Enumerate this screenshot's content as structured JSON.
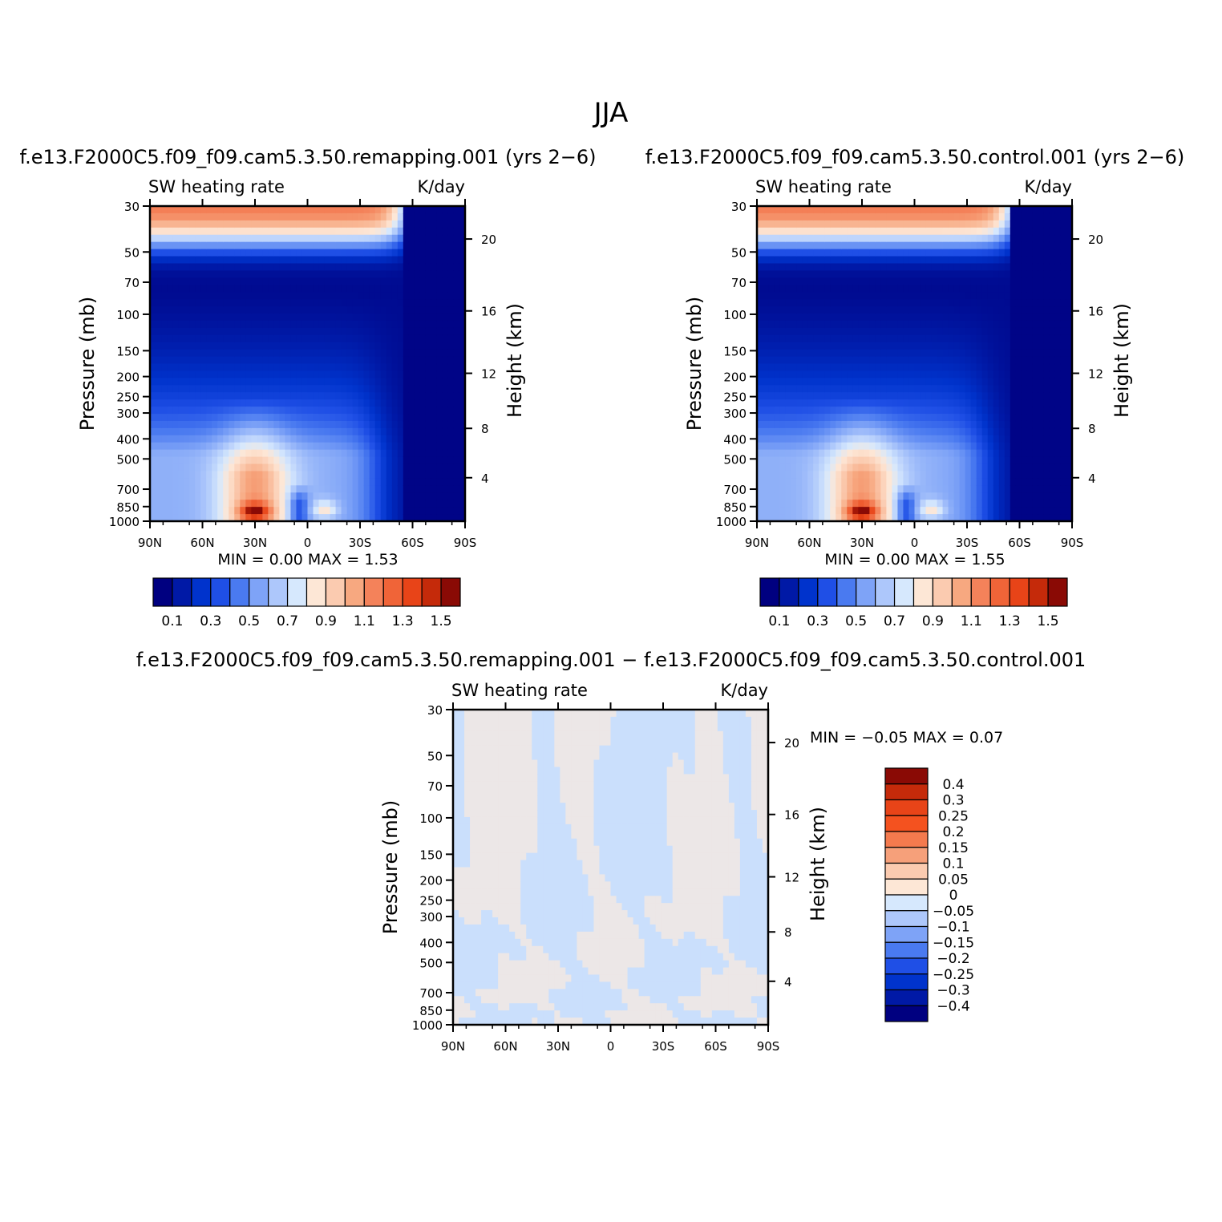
{
  "figure": {
    "title": "JJA"
  },
  "chart_data": [
    {
      "type": "heatmap",
      "case_title": "f.e13.F2000C5.f09_f09.cam5.3.50.remapping.001  (yrs 2−6)",
      "variable": "SW heating rate",
      "units": "K/day",
      "xlabel": "",
      "ylabel": "Pressure (mb)",
      "y2label": "Height (km)",
      "x_ticks": [
        "90N",
        "60N",
        "30N",
        "0",
        "30S",
        "60S",
        "90S"
      ],
      "y_ticks": [
        30,
        50,
        70,
        100,
        150,
        200,
        250,
        300,
        400,
        500,
        700,
        850,
        1000
      ],
      "y2_ticks": [
        20,
        16,
        12,
        8,
        4
      ],
      "ylim": [
        1000,
        30
      ],
      "stats": {
        "min_label": "MIN =",
        "min": "0.00",
        "max_label": "MAX =",
        "max": "1.53"
      },
      "colorbar_levels": [
        "0.1",
        "0.3",
        "0.5",
        "0.7",
        "0.9",
        "1.1",
        "1.3",
        "1.5"
      ],
      "colorbar_colors": [
        "#000080",
        "#0019a6",
        "#0033cc",
        "#1f4fe6",
        "#4a7af0",
        "#7ea3f7",
        "#adc7fb",
        "#d6e8fd",
        "#fde7d6",
        "#fbcbb0",
        "#f7a880",
        "#f4825a",
        "#f06438",
        "#e84418",
        "#c52a0a",
        "#8a0a05"
      ]
    },
    {
      "type": "heatmap",
      "case_title": "f.e13.F2000C5.f09_f09.cam5.3.50.control.001  (yrs 2−6)",
      "variable": "SW heating rate",
      "units": "K/day",
      "xlabel": "",
      "ylabel": "Pressure (mb)",
      "y2label": "Height (km)",
      "x_ticks": [
        "90N",
        "60N",
        "30N",
        "0",
        "30S",
        "60S",
        "90S"
      ],
      "y_ticks": [
        30,
        50,
        70,
        100,
        150,
        200,
        250,
        300,
        400,
        500,
        700,
        850,
        1000
      ],
      "y2_ticks": [
        20,
        16,
        12,
        8,
        4
      ],
      "ylim": [
        1000,
        30
      ],
      "stats": {
        "min_label": "MIN =",
        "min": "0.00",
        "max_label": "MAX =",
        "max": "1.55"
      },
      "colorbar_levels": [
        "0.1",
        "0.3",
        "0.5",
        "0.7",
        "0.9",
        "1.1",
        "1.3",
        "1.5"
      ],
      "colorbar_colors": [
        "#000080",
        "#0019a6",
        "#0033cc",
        "#1f4fe6",
        "#4a7af0",
        "#7ea3f7",
        "#adc7fb",
        "#d6e8fd",
        "#fde7d6",
        "#fbcbb0",
        "#f7a880",
        "#f4825a",
        "#f06438",
        "#e84418",
        "#c52a0a",
        "#8a0a05"
      ]
    },
    {
      "type": "heatmap",
      "case_title": "f.e13.F2000C5.f09_f09.cam5.3.50.remapping.001 − f.e13.F2000C5.f09_f09.cam5.3.50.control.001",
      "variable": "SW heating rate",
      "units": "K/day",
      "xlabel": "",
      "ylabel": "Pressure (mb)",
      "y2label": "Height (km)",
      "x_ticks": [
        "90N",
        "60N",
        "30N",
        "0",
        "30S",
        "60S",
        "90S"
      ],
      "y_ticks": [
        30,
        50,
        70,
        100,
        150,
        200,
        250,
        300,
        400,
        500,
        700,
        850,
        1000
      ],
      "y2_ticks": [
        20,
        16,
        12,
        8,
        4
      ],
      "ylim": [
        1000,
        30
      ],
      "stats": {
        "min_label": "MIN =",
        "min": "−0.05",
        "max_label": "MAX =",
        "max": "0.07"
      },
      "colorbar_levels": [
        "0.4",
        "0.3",
        "0.25",
        "0.2",
        "0.15",
        "0.1",
        "0.05",
        "0",
        "−0.05",
        "−0.1",
        "−0.15",
        "−0.2",
        "−0.25",
        "−0.3",
        "−0.4"
      ],
      "colorbar_colors": [
        "#8a0a05",
        "#c52a0a",
        "#e84418",
        "#f4521f",
        "#f47a4e",
        "#f6a07a",
        "#fbcbb0",
        "#fde7d6",
        "#d6e8fd",
        "#adc7fb",
        "#7ea3f7",
        "#4a7af0",
        "#1f4fe6",
        "#0033cc",
        "#0019a6",
        "#000080"
      ]
    }
  ]
}
